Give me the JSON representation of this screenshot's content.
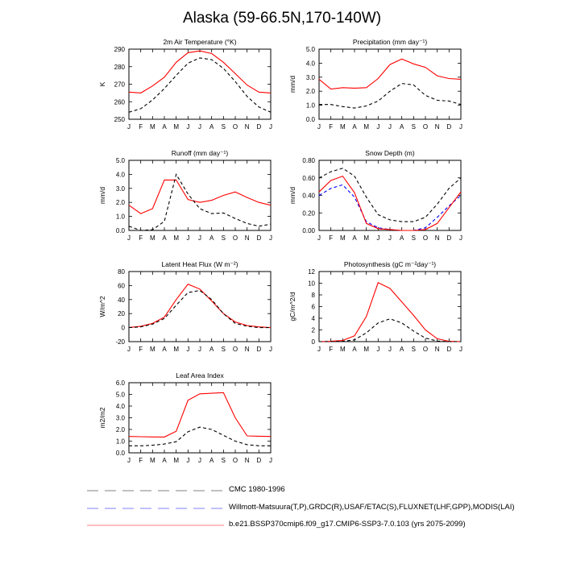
{
  "title": "Alaska (59-66.5N,170-140W)",
  "months": [
    "J",
    "F",
    "M",
    "A",
    "M",
    "J",
    "J",
    "A",
    "S",
    "O",
    "N",
    "D",
    "J"
  ],
  "series_styles": [
    {
      "name": "CMC 1980-1996",
      "color": "#000000",
      "dash": "4,3"
    },
    {
      "name": "Willmott-Matsuura(T,P),GRDC(R),USAF/ETAC(S),FLUXNET(LHF,GPP),MODIS(LAI)",
      "color": "#0000ff",
      "dash": "4,3"
    },
    {
      "name": "b.e21.BSSP370cmip6.f09_g17.CMIP6-SSP3-7.0.103 (yrs 2075-2099)",
      "color": "#ff0000",
      "dash": ""
    }
  ],
  "legend": [
    {
      "label": "CMC 1980-1996",
      "color": "#808080",
      "dash": "14,8"
    },
    {
      "label": "Willmott-Matsuura(T,P),GRDC(R),USAF/ETAC(S),FLUXNET(LHF,GPP),MODIS(LAI)",
      "color": "#8080ff",
      "dash": "14,8"
    },
    {
      "label": "b.e21.BSSP370cmip6.f09_g17.CMIP6-SSP3-7.0.103 (yrs 2075-2099)",
      "color": "#ff8080",
      "dash": ""
    }
  ],
  "chart_data": [
    {
      "type": "line",
      "title": "2m Air Temperature (°K)",
      "ylabel": "K",
      "ylim": [
        250,
        290
      ],
      "yticks": [
        250,
        260,
        270,
        280,
        290
      ],
      "ytick_labels": [
        "250",
        "260",
        "270",
        "280",
        "290"
      ],
      "series": [
        {
          "style": 2,
          "values": [
            265.5,
            265,
            269,
            274,
            282.5,
            288,
            289,
            287.5,
            282.5,
            276,
            269.5,
            265.5,
            265
          ]
        },
        {
          "style": 0,
          "values": [
            254,
            256,
            261,
            267.5,
            275,
            282,
            285,
            284,
            279,
            271.5,
            263,
            257,
            254
          ]
        }
      ]
    },
    {
      "type": "line",
      "title": "Precipitation (mm day⁻¹)",
      "ylabel": "mm/d",
      "ylim": [
        0,
        5
      ],
      "yticks": [
        0,
        1,
        2,
        3,
        4,
        5
      ],
      "ytick_labels": [
        "0.0",
        "1.0",
        "2.0",
        "3.0",
        "4.0",
        "5.0"
      ],
      "series": [
        {
          "style": 2,
          "values": [
            2.85,
            2.15,
            2.25,
            2.22,
            2.25,
            2.9,
            3.9,
            4.3,
            3.95,
            3.7,
            3.1,
            2.9,
            2.85
          ]
        },
        {
          "style": 0,
          "values": [
            1.05,
            1.05,
            0.9,
            0.8,
            0.95,
            1.3,
            2.0,
            2.55,
            2.45,
            1.7,
            1.35,
            1.3,
            1.05
          ]
        }
      ]
    },
    {
      "type": "line",
      "title": "Runoff (mm day⁻¹)",
      "ylabel": "mm/d",
      "ylim": [
        0,
        5
      ],
      "yticks": [
        0,
        1,
        2,
        3,
        4,
        5
      ],
      "ytick_labels": [
        "0.0",
        "1.0",
        "2.0",
        "3.0",
        "4.0",
        "5.0"
      ],
      "series": [
        {
          "style": 2,
          "values": [
            1.8,
            1.2,
            1.55,
            3.6,
            3.6,
            2.2,
            2.0,
            2.15,
            2.5,
            2.75,
            2.35,
            2.0,
            1.8
          ]
        },
        {
          "style": 0,
          "values": [
            0.3,
            0.0,
            0.05,
            0.65,
            4.0,
            2.6,
            1.55,
            1.2,
            1.25,
            0.85,
            0.5,
            0.3,
            0.45
          ]
        }
      ]
    },
    {
      "type": "line",
      "title": "Snow Depth (m)",
      "ylabel": "mm/d",
      "ylim": [
        0,
        0.8
      ],
      "yticks": [
        0,
        0.2,
        0.4,
        0.6,
        0.8
      ],
      "ytick_labels": [
        "0.00",
        "0.20",
        "0.40",
        "0.60",
        "0.80"
      ],
      "series": [
        {
          "style": 0,
          "values": [
            0.6,
            0.67,
            0.71,
            0.62,
            0.38,
            0.18,
            0.12,
            0.1,
            0.1,
            0.15,
            0.3,
            0.48,
            0.6
          ]
        },
        {
          "style": 1,
          "values": [
            0.4,
            0.48,
            0.52,
            0.38,
            0.1,
            0.03,
            0.01,
            0.0,
            0.0,
            0.03,
            0.15,
            0.28,
            0.4
          ]
        },
        {
          "style": 2,
          "values": [
            0.44,
            0.57,
            0.62,
            0.43,
            0.08,
            0.02,
            0.01,
            0.0,
            0.0,
            0.01,
            0.08,
            0.26,
            0.44
          ]
        }
      ]
    },
    {
      "type": "line",
      "title": "Latent Heat Flux (W m⁻²)",
      "ylabel": "W/m^2",
      "ylim": [
        -20,
        80
      ],
      "yticks": [
        -20,
        0,
        20,
        40,
        60,
        80
      ],
      "ytick_labels": [
        "-20",
        "0",
        "20",
        "40",
        "60",
        "80"
      ],
      "series": [
        {
          "style": 2,
          "values": [
            0,
            2,
            6,
            15,
            40,
            62,
            55,
            38,
            20,
            8,
            3,
            1,
            0
          ]
        },
        {
          "style": 0,
          "values": [
            0,
            1,
            5,
            13,
            32,
            50,
            53,
            40,
            20,
            6,
            2,
            0,
            0
          ]
        }
      ]
    },
    {
      "type": "line",
      "title": "Photosynthesis (gC m⁻²day⁻¹)",
      "ylabel": "gC/m^2/d",
      "ylim": [
        0,
        12
      ],
      "yticks": [
        0,
        2,
        4,
        6,
        8,
        10,
        12
      ],
      "ytick_labels": [
        "0",
        "2",
        "4",
        "6",
        "8",
        "10",
        "12"
      ],
      "series": [
        {
          "style": 2,
          "values": [
            0,
            0.05,
            0.2,
            1.0,
            4.3,
            10.1,
            9.1,
            6.8,
            4.5,
            2.0,
            0.5,
            0.05,
            0
          ]
        },
        {
          "style": 0,
          "values": [
            0,
            0.0,
            0.05,
            0.3,
            1.5,
            3.2,
            3.9,
            3.2,
            1.8,
            0.6,
            0.1,
            0.0,
            0
          ]
        }
      ]
    },
    {
      "type": "line",
      "title": "Leaf Area Index",
      "ylabel": "m2/m2",
      "ylim": [
        0,
        6
      ],
      "yticks": [
        0,
        1,
        2,
        3,
        4,
        5,
        6
      ],
      "ytick_labels": [
        "0.0",
        "1.0",
        "2.0",
        "3.0",
        "4.0",
        "5.0",
        "6.0"
      ],
      "series": [
        {
          "style": 2,
          "values": [
            1.4,
            1.38,
            1.36,
            1.35,
            1.85,
            4.5,
            5.05,
            5.1,
            5.15,
            3.0,
            1.45,
            1.42,
            1.4
          ]
        },
        {
          "style": 0,
          "values": [
            0.6,
            0.6,
            0.65,
            0.75,
            0.95,
            1.8,
            2.2,
            2.0,
            1.5,
            1.0,
            0.7,
            0.6,
            0.6
          ]
        }
      ]
    }
  ]
}
